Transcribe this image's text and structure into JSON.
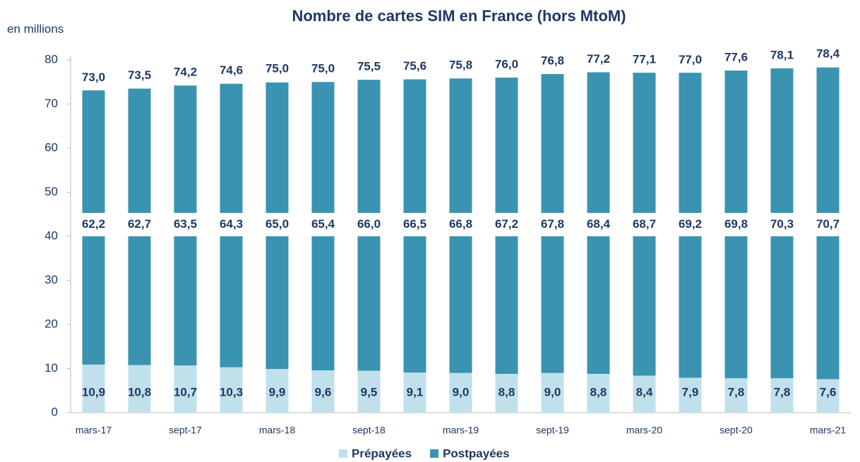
{
  "chart_data": {
    "type": "stacked-bar",
    "title": "Nombre de cartes SIM en France (hors MtoM)",
    "y_label": "en millions",
    "categories": [
      "mars-17",
      null,
      "sept-17",
      null,
      "mars-18",
      null,
      "sept-18",
      null,
      "mars-19",
      null,
      "sept-19",
      null,
      "mars-20",
      null,
      "sept-20",
      null,
      "mars-21"
    ],
    "ylim": [
      0,
      80
    ],
    "yticks": [
      0,
      10,
      20,
      30,
      40,
      50,
      60,
      70,
      80
    ],
    "series": [
      {
        "name": "Prépayées",
        "color": "#c0e0ec",
        "values": [
          10.9,
          10.8,
          10.7,
          10.3,
          9.9,
          9.6,
          9.5,
          9.1,
          9.0,
          8.8,
          9.0,
          8.8,
          8.4,
          7.9,
          7.8,
          7.8,
          7.6
        ],
        "value_labels": [
          "10,9",
          "10,8",
          "10,7",
          "10,3",
          "9,9",
          "9,6",
          "9,5",
          "9,1",
          "9,0",
          "8,8",
          "9,0",
          "8,8",
          "8,4",
          "7,9",
          "7,8",
          "7,8",
          "7,6"
        ]
      },
      {
        "name": "Postpayées",
        "color": "#3a93b0",
        "values": [
          62.2,
          62.7,
          63.5,
          64.3,
          65.0,
          65.4,
          66.0,
          66.5,
          66.8,
          67.2,
          67.8,
          68.4,
          68.7,
          69.2,
          69.8,
          70.3,
          70.7
        ],
        "value_labels": [
          "62,2",
          "62,7",
          "63,5",
          "64,3",
          "65,0",
          "65,4",
          "66,0",
          "66,5",
          "66,8",
          "67,2",
          "67,8",
          "68,4",
          "68,7",
          "69,2",
          "69,8",
          "70,3",
          "70,7"
        ]
      }
    ],
    "totals": [
      73.0,
      73.5,
      74.2,
      74.6,
      75.0,
      75.0,
      75.5,
      75.6,
      75.8,
      76.0,
      76.8,
      77.2,
      77.1,
      77.0,
      77.6,
      78.1,
      78.4
    ],
    "total_labels": [
      "73,0",
      "73,5",
      "74,2",
      "74,6",
      "75,0",
      "75,0",
      "75,5",
      "75,6",
      "75,8",
      "76,0",
      "76,8",
      "77,2",
      "77,1",
      "77,0",
      "77,6",
      "78,1",
      "78,4"
    ]
  }
}
